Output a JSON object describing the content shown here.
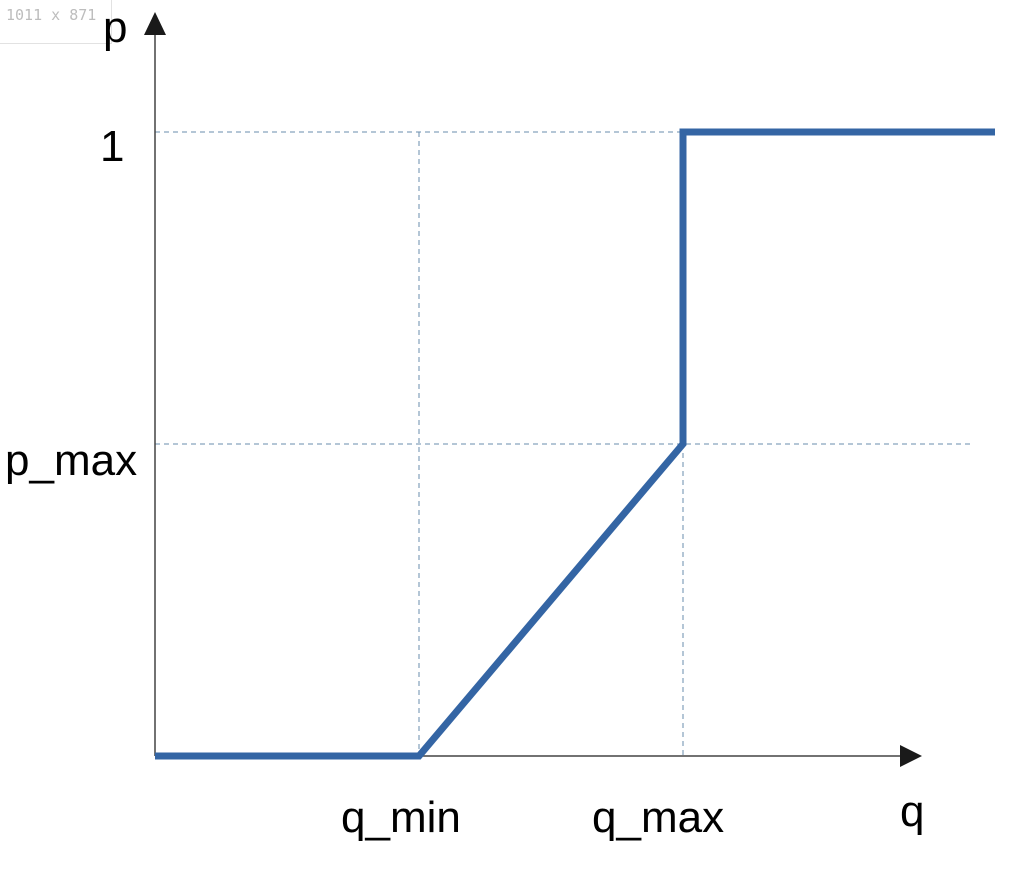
{
  "badge": {
    "size_text": "1011 x 871"
  },
  "axes": {
    "y_label": "p",
    "x_label": "q"
  },
  "ticks": {
    "y": [
      {
        "label": "1"
      },
      {
        "label": "p_max"
      }
    ],
    "x": [
      {
        "label": "q_min"
      },
      {
        "label": "q_max"
      }
    ]
  },
  "colors": {
    "curve": "#3465a4",
    "guides": "#6a8cad",
    "axis": "#444444",
    "arrow": "#1a1a1a"
  }
}
